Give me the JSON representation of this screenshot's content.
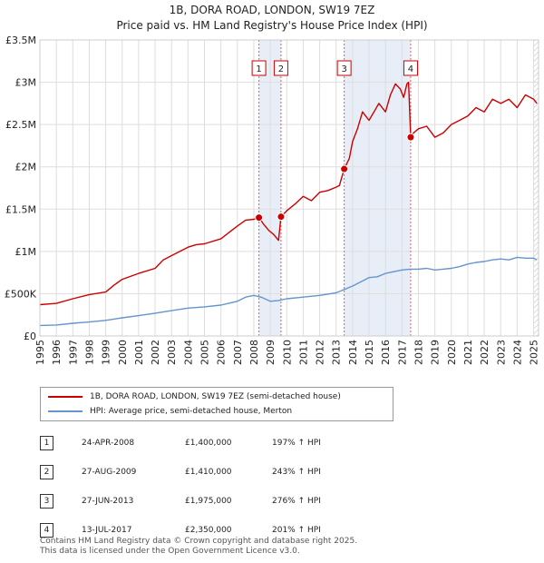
{
  "chart_data": {
    "type": "line",
    "title": "1B, DORA ROAD, LONDON, SW19 7EZ",
    "subtitle": "Price paid vs. HM Land Registry's House Price Index (HPI)",
    "xlim": [
      1995,
      2025.3
    ],
    "ylim": [
      0,
      3500000
    ],
    "x_ticks": [
      "1995",
      "1996",
      "1997",
      "1998",
      "1999",
      "2000",
      "2001",
      "2002",
      "2003",
      "2004",
      "2005",
      "2006",
      "2007",
      "2008",
      "2009",
      "2010",
      "2011",
      "2012",
      "2013",
      "2014",
      "2015",
      "2016",
      "2017",
      "2018",
      "2019",
      "2020",
      "2021",
      "2022",
      "2023",
      "2024",
      "2025"
    ],
    "y_ticks": [
      {
        "value": 0,
        "label": "£0"
      },
      {
        "value": 500000,
        "label": "£500K"
      },
      {
        "value": 1000000,
        "label": "£1M"
      },
      {
        "value": 1500000,
        "label": "£1.5M"
      },
      {
        "value": 2000000,
        "label": "£2M"
      },
      {
        "value": 2500000,
        "label": "£2.5M"
      },
      {
        "value": 3000000,
        "label": "£3M"
      },
      {
        "value": 3500000,
        "label": "£3.5M"
      }
    ],
    "series": [
      {
        "name": "1B, DORA ROAD, LONDON, SW19 7EZ (semi-detached house)",
        "color": "#cc0000",
        "x": [
          1995.0,
          1996.0,
          1997.0,
          1998.0,
          1999.0,
          1999.5,
          2000.0,
          2001.0,
          2002.0,
          2002.5,
          2003.0,
          2004.0,
          2004.5,
          2005.0,
          2006.0,
          2007.0,
          2007.5,
          2008.0,
          2008.31,
          2008.6,
          2008.9,
          2009.2,
          2009.5,
          2009.65,
          2010.0,
          2010.5,
          2011.0,
          2011.5,
          2012.0,
          2012.5,
          2013.0,
          2013.2,
          2013.49,
          2013.8,
          2014.0,
          2014.3,
          2014.6,
          2015.0,
          2015.3,
          2015.6,
          2016.0,
          2016.3,
          2016.6,
          2016.9,
          2017.1,
          2017.3,
          2017.4,
          2017.53,
          2017.7,
          2018.0,
          2018.5,
          2019.0,
          2019.5,
          2020.0,
          2020.5,
          2021.0,
          2021.5,
          2022.0,
          2022.5,
          2023.0,
          2023.5,
          2024.0,
          2024.5,
          2025.0,
          2025.2
        ],
        "y": [
          370000,
          385000,
          440000,
          490000,
          520000,
          600000,
          670000,
          740000,
          800000,
          900000,
          950000,
          1050000,
          1080000,
          1090000,
          1150000,
          1300000,
          1370000,
          1380000,
          1400000,
          1320000,
          1250000,
          1200000,
          1130000,
          1410000,
          1480000,
          1560000,
          1650000,
          1600000,
          1700000,
          1720000,
          1760000,
          1780000,
          1975000,
          2100000,
          2300000,
          2450000,
          2650000,
          2550000,
          2650000,
          2750000,
          2650000,
          2850000,
          2980000,
          2920000,
          2820000,
          2980000,
          3000000,
          2350000,
          2400000,
          2450000,
          2480000,
          2350000,
          2400000,
          2500000,
          2550000,
          2600000,
          2700000,
          2650000,
          2800000,
          2750000,
          2800000,
          2700000,
          2850000,
          2800000,
          2750000
        ]
      },
      {
        "name": "HPI: Average price, semi-detached house, Merton",
        "color": "#6495cd",
        "x": [
          1995.0,
          1996.0,
          1997.0,
          1998.0,
          1999.0,
          2000.0,
          2001.0,
          2002.0,
          2003.0,
          2004.0,
          2005.0,
          2006.0,
          2007.0,
          2007.5,
          2008.0,
          2008.5,
          2009.0,
          2009.5,
          2010.0,
          2011.0,
          2012.0,
          2013.0,
          2014.0,
          2014.5,
          2015.0,
          2015.5,
          2016.0,
          2016.5,
          2017.0,
          2017.5,
          2018.0,
          2018.5,
          2019.0,
          2019.5,
          2020.0,
          2020.5,
          2021.0,
          2021.5,
          2022.0,
          2022.5,
          2023.0,
          2023.5,
          2024.0,
          2024.5,
          2025.0,
          2025.2
        ],
        "y": [
          125000,
          130000,
          150000,
          165000,
          185000,
          215000,
          240000,
          270000,
          300000,
          330000,
          345000,
          365000,
          410000,
          460000,
          480000,
          455000,
          410000,
          420000,
          440000,
          460000,
          480000,
          510000,
          590000,
          640000,
          690000,
          700000,
          740000,
          760000,
          780000,
          790000,
          790000,
          800000,
          780000,
          790000,
          800000,
          820000,
          850000,
          870000,
          880000,
          900000,
          910000,
          900000,
          930000,
          920000,
          920000,
          900000
        ]
      }
    ],
    "sales": [
      {
        "num": "1",
        "date": "24-APR-2008",
        "x": 2008.31,
        "price_value": 1400000,
        "price": "£1,400,000",
        "hpi": "197% ↑ HPI"
      },
      {
        "num": "2",
        "date": "27-AUG-2009",
        "x": 2009.65,
        "price_value": 1410000,
        "price": "£1,410,000",
        "hpi": "243% ↑ HPI"
      },
      {
        "num": "3",
        "date": "27-JUN-2013",
        "x": 2013.49,
        "price_value": 1975000,
        "price": "£1,975,000",
        "hpi": "276% ↑ HPI"
      },
      {
        "num": "4",
        "date": "13-JUL-2017",
        "x": 2017.53,
        "price_value": 2350000,
        "price": "£2,350,000",
        "hpi": "201% ↑ HPI"
      }
    ],
    "legend_position": "below",
    "shaded_spans": [
      [
        2008.31,
        2009.65
      ],
      [
        2013.49,
        2017.53
      ]
    ],
    "future_hatch_from": 2025.0
  },
  "footer": {
    "line1": "Contains HM Land Registry data © Crown copyright and database right 2025.",
    "line2": "This data is licensed under the Open Government Licence v3.0."
  }
}
